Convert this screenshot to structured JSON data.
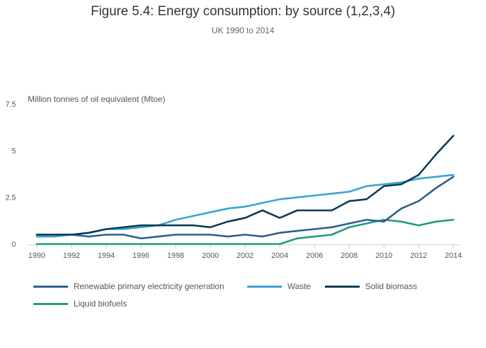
{
  "chart_data": {
    "type": "line",
    "title": "Figure 5.4: Energy consumption: by source (1,2,3,4)",
    "subtitle": "UK 1990 to 2014",
    "ylabel": "Million tonnes of oil equivalent (Mtoe)",
    "xlabel": "",
    "xlim": [
      1990,
      2014
    ],
    "ylim": [
      0,
      7.5
    ],
    "x_ticks": [
      "1990",
      "1992",
      "1994",
      "1996",
      "1998",
      "2000",
      "2002",
      "2004",
      "2006",
      "2008",
      "2010",
      "2012",
      "2014"
    ],
    "y_ticks": [
      "0",
      "2.5",
      "5",
      "7.5"
    ],
    "grid": false,
    "legend_position": "bottom",
    "x": [
      1990,
      1991,
      1992,
      1993,
      1994,
      1995,
      1996,
      1997,
      1998,
      1999,
      2000,
      2001,
      2002,
      2003,
      2004,
      2005,
      2006,
      2007,
      2008,
      2009,
      2010,
      2011,
      2012,
      2013,
      2014
    ],
    "series": [
      {
        "name": "Renewable primary electricity generation",
        "color": "#2a5f8f",
        "values": [
          0.5,
          0.5,
          0.5,
          0.4,
          0.5,
          0.5,
          0.3,
          0.4,
          0.5,
          0.5,
          0.5,
          0.4,
          0.5,
          0.4,
          0.6,
          0.7,
          0.8,
          0.9,
          1.1,
          1.3,
          1.2,
          1.9,
          2.3,
          3.0,
          3.6
        ]
      },
      {
        "name": "Waste",
        "color": "#3aa3d1",
        "values": [
          0.4,
          0.4,
          0.5,
          0.6,
          0.8,
          0.8,
          0.9,
          1.0,
          1.3,
          1.5,
          1.7,
          1.9,
          2.0,
          2.2,
          2.4,
          2.5,
          2.6,
          2.7,
          2.8,
          3.1,
          3.2,
          3.3,
          3.5,
          3.6,
          3.7
        ]
      },
      {
        "name": "Solid biomass",
        "color": "#0b3a55",
        "values": [
          0.5,
          0.5,
          0.5,
          0.6,
          0.8,
          0.9,
          1.0,
          1.0,
          1.0,
          1.0,
          0.9,
          1.2,
          1.4,
          1.8,
          1.4,
          1.8,
          1.8,
          1.8,
          2.3,
          2.4,
          3.1,
          3.2,
          3.7,
          4.8,
          5.8
        ]
      },
      {
        "name": "Liquid biofuels",
        "color": "#1f9a7d",
        "values": [
          0,
          0,
          0,
          0,
          0,
          0,
          0,
          0,
          0,
          0,
          0,
          0,
          0,
          0,
          0,
          0.3,
          0.4,
          0.5,
          0.9,
          1.1,
          1.3,
          1.2,
          1.0,
          1.2,
          1.3
        ]
      }
    ]
  }
}
